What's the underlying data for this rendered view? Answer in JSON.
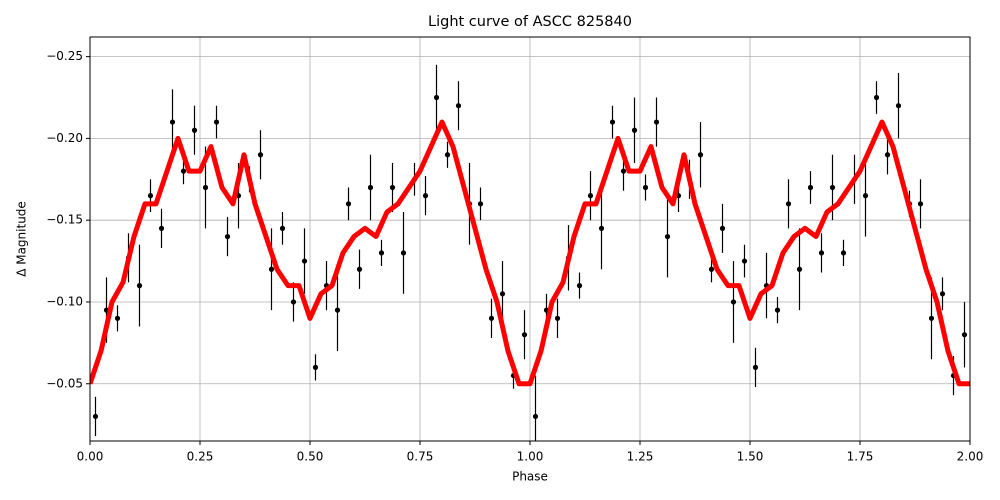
{
  "chart_data": {
    "type": "scatter",
    "title": "Light curve of ASCC 825840",
    "xlabel": "Phase",
    "ylabel": "Δ Magnitude",
    "xlim": [
      0,
      2
    ],
    "ylim": [
      -0.015,
      -0.262
    ],
    "xticks": [
      {
        "value": 0,
        "label": "0.00"
      },
      0.25,
      {
        "value": 0.5,
        "label": "0.50"
      },
      0.75,
      {
        "value": 1,
        "label": "1.00"
      },
      1.25,
      {
        "value": 1.5,
        "label": "1.50"
      },
      1.75,
      {
        "value": 2,
        "label": "2.00"
      }
    ],
    "yticks": [
      {
        "value": -0.05,
        "label": "−0.05"
      },
      {
        "value": -0.1,
        "label": "−0.10"
      },
      {
        "value": -0.15,
        "label": "−0.15"
      },
      {
        "value": -0.2,
        "label": "−0.20"
      },
      {
        "value": -0.25,
        "label": "−0.25"
      }
    ],
    "grid": true,
    "series": [
      {
        "type": "errorbar",
        "color": "#000000",
        "x": [
          0.0125,
          0.0375,
          0.0625,
          0.0875,
          0.1125,
          0.1375,
          0.1625,
          0.1875,
          0.2125,
          0.2375,
          0.2625,
          0.2875,
          0.3125,
          0.3375,
          0.3625,
          0.3875,
          0.4125,
          0.4375,
          0.4625,
          0.4875,
          0.5125,
          0.5375,
          0.5625,
          0.5875,
          0.6125,
          0.6375,
          0.6625,
          0.6875,
          0.7125,
          0.7375,
          0.7625,
          0.7875,
          0.8125,
          0.8375,
          0.8625,
          0.8875,
          0.9125,
          0.9375,
          0.9625,
          0.9875,
          1.0125,
          1.0375,
          1.0625,
          1.0875,
          1.1125,
          1.1375,
          1.1625,
          1.1875,
          1.2125,
          1.2375,
          1.2625,
          1.2875,
          1.3125,
          1.3375,
          1.3625,
          1.3875,
          1.4125,
          1.4375,
          1.4625,
          1.4875,
          1.5125,
          1.5375,
          1.5625,
          1.5875,
          1.6125,
          1.6375,
          1.6625,
          1.6875,
          1.7125,
          1.7375,
          1.7625,
          1.7875,
          1.8125,
          1.8375,
          1.8625,
          1.8875,
          1.9125,
          1.9375,
          1.9625,
          1.9875
        ],
        "values": [
          -0.03,
          -0.095,
          -0.09,
          -0.127,
          -0.11,
          -0.165,
          -0.145,
          -0.21,
          -0.18,
          -0.205,
          -0.17,
          -0.21,
          -0.14,
          -0.165,
          -0.175,
          -0.19,
          -0.12,
          -0.145,
          -0.1,
          -0.125,
          -0.06,
          -0.11,
          -0.095,
          -0.16,
          -0.12,
          -0.17,
          -0.13,
          -0.17,
          -0.13,
          -0.175,
          -0.165,
          -0.225,
          -0.19,
          -0.22,
          -0.16,
          -0.16,
          -0.09,
          -0.105,
          -0.055,
          -0.08,
          -0.03,
          -0.095,
          -0.09,
          -0.127,
          -0.11,
          -0.165,
          -0.145,
          -0.21,
          -0.18,
          -0.205,
          -0.17,
          -0.21,
          -0.14,
          -0.165,
          -0.175,
          -0.19,
          -0.12,
          -0.145,
          -0.1,
          -0.125,
          -0.06,
          -0.11,
          -0.095,
          -0.16,
          -0.12,
          -0.17,
          -0.13,
          -0.17,
          -0.13,
          -0.175,
          -0.165,
          -0.225,
          -0.19,
          -0.22,
          -0.16,
          -0.16,
          -0.09,
          -0.105,
          -0.055,
          -0.08
        ],
        "errors": [
          0.012,
          0.02,
          0.008,
          0.015,
          0.025,
          0.01,
          0.012,
          0.02,
          0.008,
          0.015,
          0.025,
          0.01,
          0.012,
          0.02,
          0.008,
          0.015,
          0.025,
          0.01,
          0.012,
          0.02,
          0.008,
          0.015,
          0.025,
          0.01,
          0.012,
          0.02,
          0.008,
          0.015,
          0.025,
          0.01,
          0.012,
          0.02,
          0.008,
          0.015,
          0.025,
          0.01,
          0.012,
          0.02,
          0.008,
          0.015,
          0.025,
          0.01,
          0.012,
          0.02,
          0.008,
          0.015,
          0.025,
          0.01,
          0.012,
          0.02,
          0.008,
          0.015,
          0.025,
          0.01,
          0.012,
          0.02,
          0.008,
          0.015,
          0.025,
          0.01,
          0.012,
          0.02,
          0.008,
          0.015,
          0.025,
          0.01,
          0.012,
          0.02,
          0.008,
          0.015,
          0.025,
          0.01,
          0.012,
          0.02,
          0.008,
          0.015,
          0.025,
          0.01,
          0.012,
          0.02
        ]
      },
      {
        "type": "line",
        "color": "#ff0000",
        "x": [
          0,
          0.025,
          0.05,
          0.075,
          0.1,
          0.125,
          0.15,
          0.175,
          0.2,
          0.225,
          0.25,
          0.275,
          0.3,
          0.325,
          0.35,
          0.375,
          0.4,
          0.425,
          0.45,
          0.475,
          0.5,
          0.525,
          0.55,
          0.575,
          0.6,
          0.625,
          0.65,
          0.675,
          0.7,
          0.725,
          0.75,
          0.775,
          0.8,
          0.825,
          0.85,
          0.875,
          0.9,
          0.925,
          0.95,
          0.975,
          1,
          1.025,
          1.05,
          1.075,
          1.1,
          1.125,
          1.15,
          1.175,
          1.2,
          1.225,
          1.25,
          1.275,
          1.3,
          1.325,
          1.35,
          1.375,
          1.4,
          1.425,
          1.45,
          1.475,
          1.5,
          1.525,
          1.55,
          1.575,
          1.6,
          1.625,
          1.65,
          1.675,
          1.7,
          1.725,
          1.75,
          1.775,
          1.8,
          1.825,
          1.85,
          1.875,
          1.9,
          1.925,
          1.95,
          1.975,
          2
        ],
        "values": [
          -0.05,
          -0.07,
          -0.1,
          -0.112,
          -0.14,
          -0.16,
          -0.16,
          -0.18,
          -0.2,
          -0.18,
          -0.18,
          -0.195,
          -0.17,
          -0.16,
          -0.19,
          -0.16,
          -0.14,
          -0.12,
          -0.11,
          -0.11,
          -0.09,
          -0.105,
          -0.11,
          -0.13,
          -0.14,
          -0.145,
          -0.14,
          -0.155,
          -0.16,
          -0.17,
          -0.18,
          -0.195,
          -0.21,
          -0.195,
          -0.17,
          -0.145,
          -0.12,
          -0.1,
          -0.07,
          -0.05,
          -0.05,
          -0.07,
          -0.1,
          -0.112,
          -0.14,
          -0.16,
          -0.16,
          -0.18,
          -0.2,
          -0.18,
          -0.18,
          -0.195,
          -0.17,
          -0.16,
          -0.19,
          -0.16,
          -0.14,
          -0.12,
          -0.11,
          -0.11,
          -0.09,
          -0.105,
          -0.11,
          -0.13,
          -0.14,
          -0.145,
          -0.14,
          -0.155,
          -0.16,
          -0.17,
          -0.18,
          -0.195,
          -0.21,
          -0.195,
          -0.17,
          -0.145,
          -0.12,
          -0.1,
          -0.07,
          -0.05,
          -0.05
        ]
      }
    ]
  }
}
